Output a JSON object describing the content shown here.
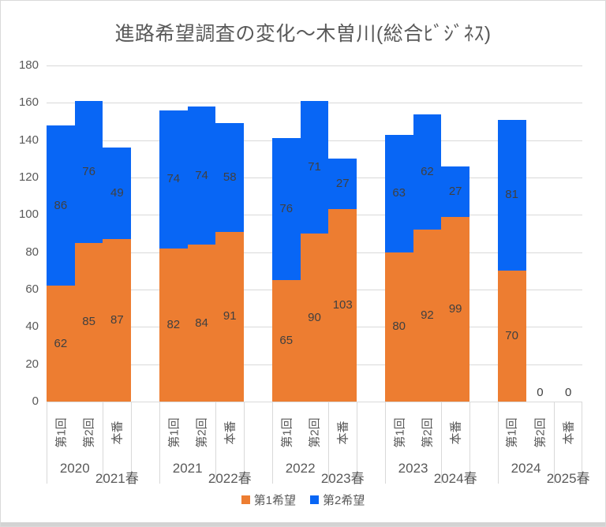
{
  "title": "進路希望調査の変化～木曽川(総合ﾋﾞｼﾞﾈｽ)",
  "chart_data": {
    "type": "bar",
    "stacked": true,
    "title": "進路希望調査の変化～木曽川(総合ﾋﾞｼﾞﾈｽ)",
    "ylim": [
      0,
      180
    ],
    "ytick_step": 20,
    "ytick_labels": [
      "0",
      "20",
      "40",
      "60",
      "80",
      "100",
      "120",
      "140",
      "160",
      "180"
    ],
    "gridlines": true,
    "legend_position": "bottom",
    "series": [
      {
        "name": "第1希望",
        "color": "#ED7D31"
      },
      {
        "name": "第2希望",
        "color": "#0866F5"
      }
    ],
    "round_labels": [
      "第1回",
      "第2回",
      "本番"
    ],
    "groups": [
      {
        "survey_year": "2020",
        "result_year": "2021春",
        "first_choice": [
          62,
          85,
          87
        ],
        "second_choice": [
          86,
          76,
          49
        ]
      },
      {
        "survey_year": "2021",
        "result_year": "2022春",
        "first_choice": [
          82,
          84,
          91
        ],
        "second_choice": [
          74,
          74,
          58
        ]
      },
      {
        "survey_year": "2022",
        "result_year": "2023春",
        "first_choice": [
          65,
          90,
          103
        ],
        "second_choice": [
          76,
          71,
          27
        ]
      },
      {
        "survey_year": "2023",
        "result_year": "2024春",
        "first_choice": [
          80,
          92,
          99
        ],
        "second_choice": [
          63,
          62,
          27
        ]
      },
      {
        "survey_year": "2024",
        "result_year": "2025春",
        "first_choice": [
          70,
          0,
          0
        ],
        "second_choice": [
          81,
          0,
          0
        ]
      }
    ],
    "colors": {
      "gridline": "#D9D9D9",
      "axis_text": "#595959",
      "data_label": "#404040"
    }
  }
}
